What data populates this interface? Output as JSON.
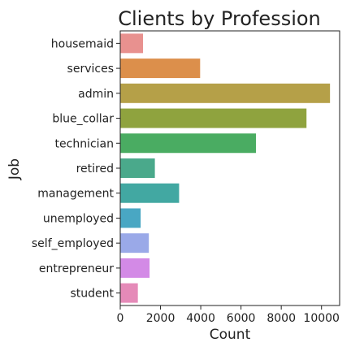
{
  "chart_data": {
    "type": "bar",
    "orientation": "horizontal",
    "title": "Clients by Profession",
    "xlabel": "Count",
    "ylabel": "Job",
    "categories": [
      "housemaid",
      "services",
      "admin",
      "blue_collar",
      "technician",
      "retired",
      "management",
      "unemployed",
      "self_employed",
      "entrepreneur",
      "student"
    ],
    "values": [
      1131,
      3969,
      10422,
      9254,
      6743,
      1720,
      2924,
      1014,
      1421,
      1456,
      875
    ],
    "colors": [
      "#e8918f",
      "#dc8f4b",
      "#b5a048",
      "#8fa33e",
      "#4aac62",
      "#4aa98b",
      "#42a8a2",
      "#49a7c3",
      "#9aa9e8",
      "#d38ae6",
      "#e58ab8"
    ],
    "xlim": [
      0,
      10900
    ],
    "xticks": [
      0,
      2000,
      4000,
      6000,
      8000,
      10000
    ],
    "grid": false,
    "legend": "none"
  }
}
